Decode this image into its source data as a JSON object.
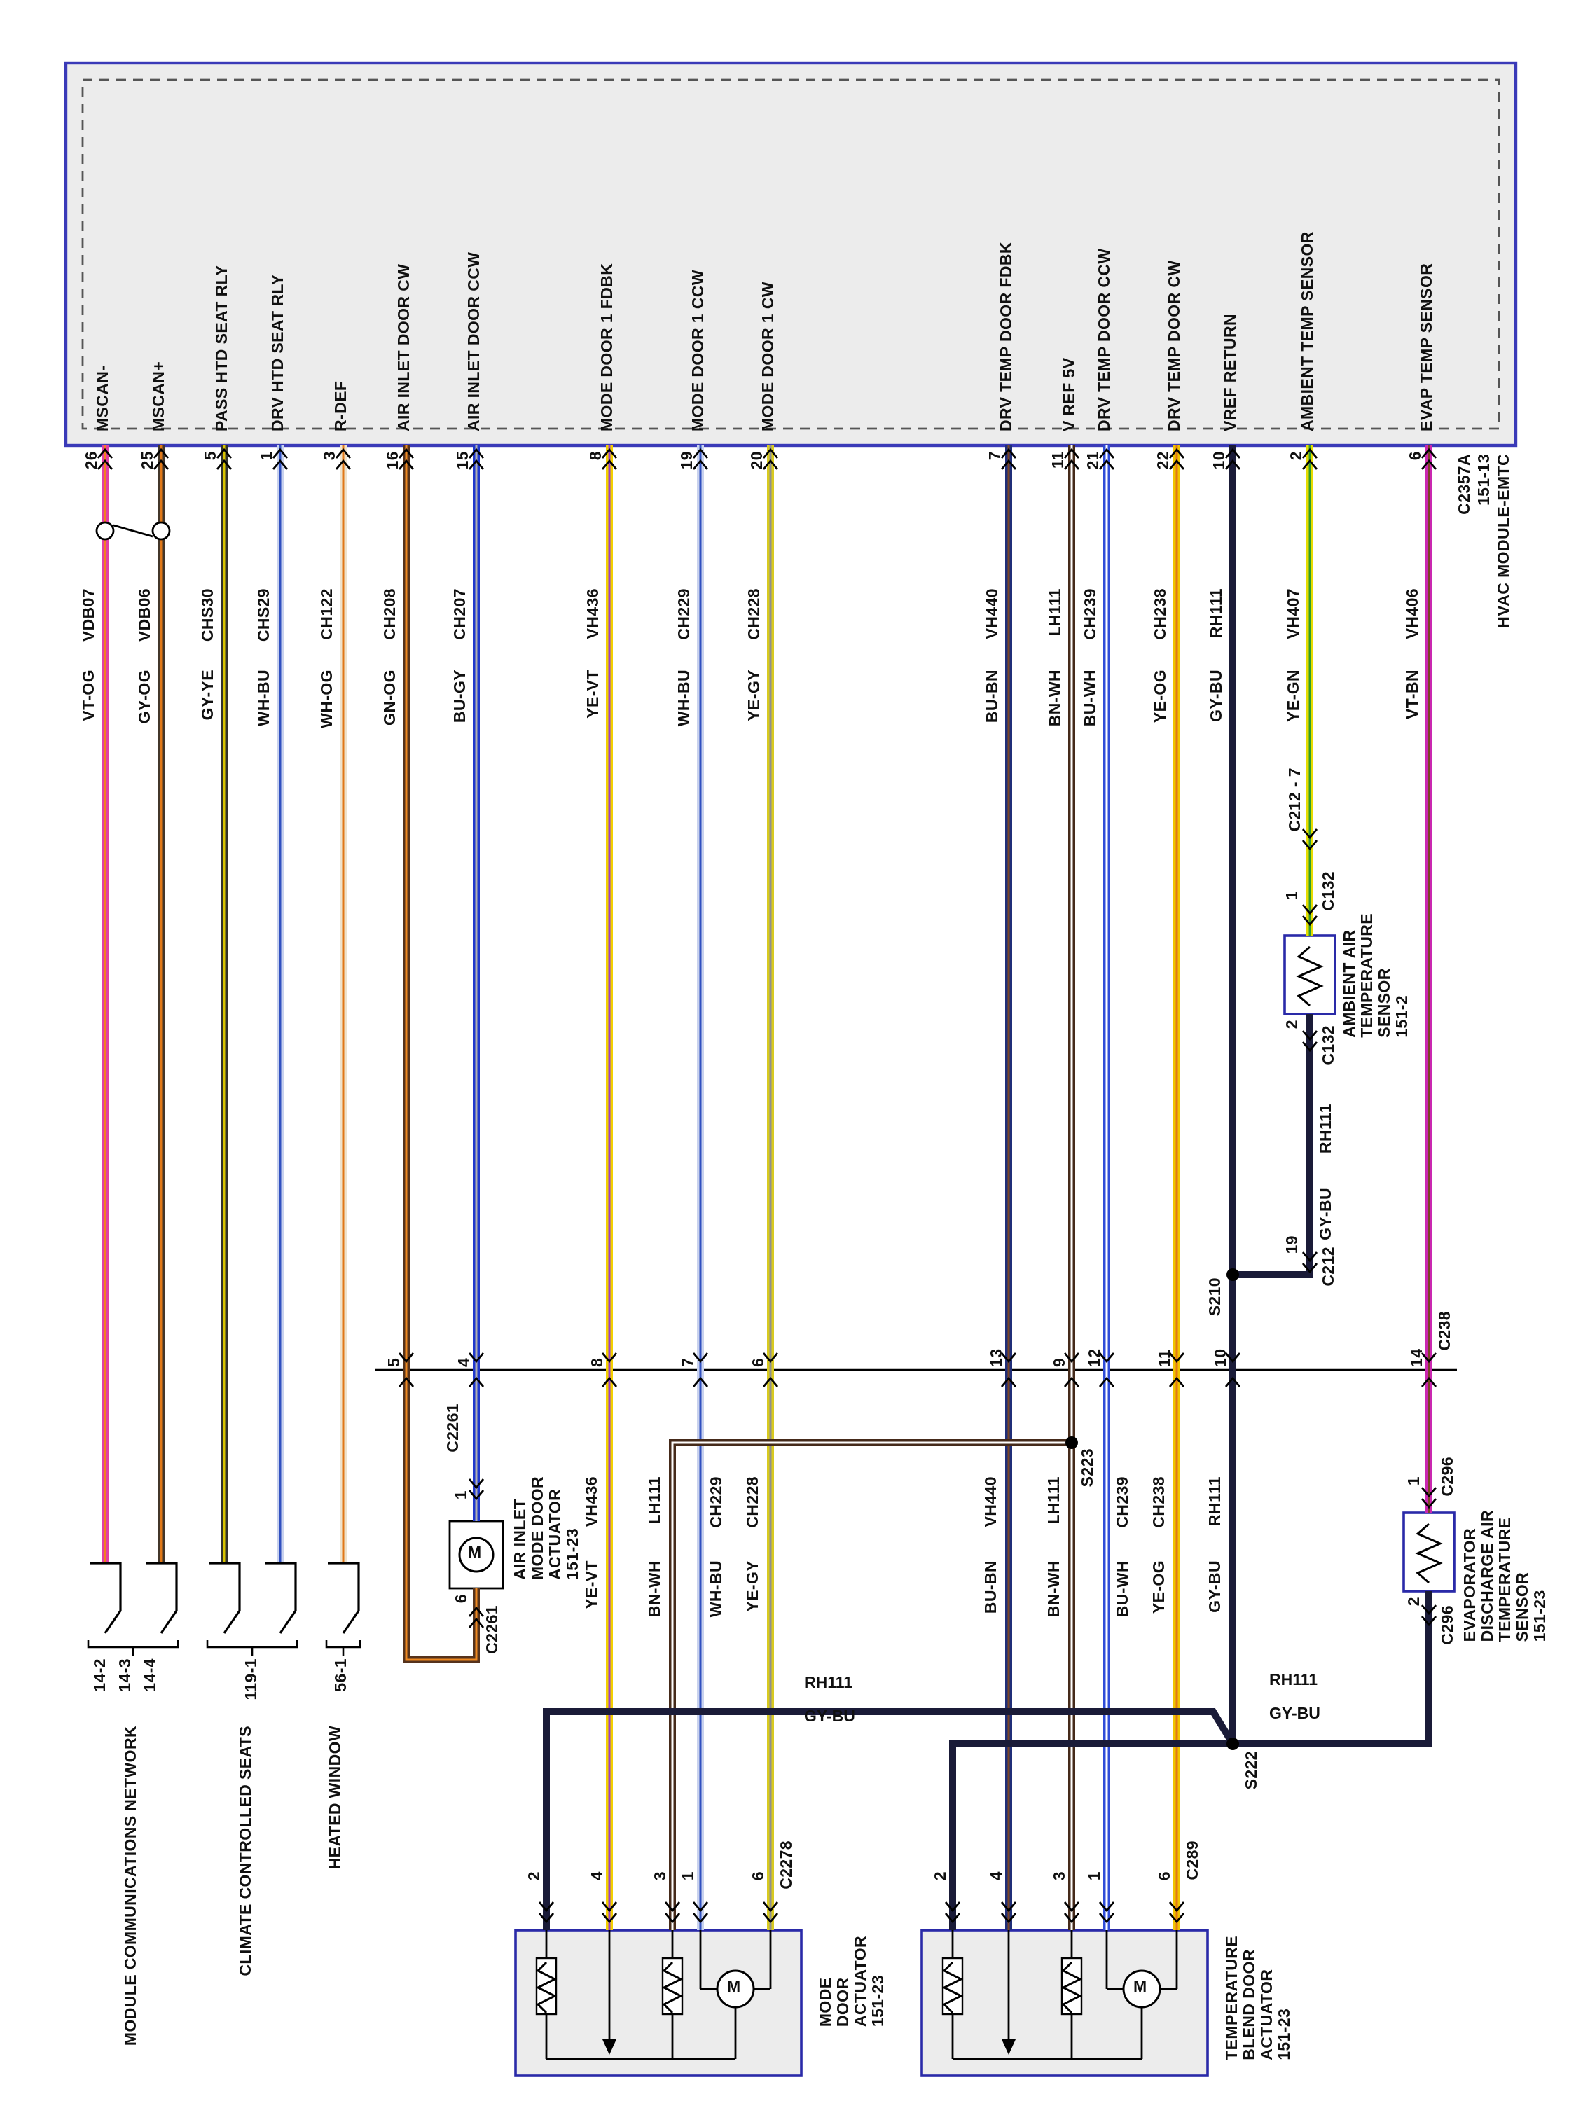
{
  "module": {
    "name": "HVAC MODULE-EMTC",
    "page": "151-13",
    "connector": "C2357A"
  },
  "wires": [
    {
      "pin": "26",
      "label": "MSCAN-",
      "circuit": "VDB07",
      "code": "VT-OG",
      "hex": "#e23fa4",
      "stripe": "#f08020"
    },
    {
      "pin": "25",
      "label": "MSCAN+",
      "circuit": "VDB06",
      "code": "GY-OG",
      "hex": "#42362a",
      "stripe": "#e07818"
    },
    {
      "pin": "5",
      "label": "PASS HTD SEAT RLY",
      "circuit": "CHS30",
      "code": "GY-YE",
      "hex": "#33332b",
      "stripe": "#d8c400"
    },
    {
      "pin": "1",
      "label": "DRV HTD SEAT RLY",
      "circuit": "CHS29",
      "code": "WH-BU",
      "hex": "#c9d2ee",
      "stripe": "#3050c0"
    },
    {
      "pin": "3",
      "label": "R-DEF",
      "circuit": "CH122",
      "code": "WH-OG",
      "hex": "#efe3cc",
      "stripe": "#e07818"
    },
    {
      "pin": "16",
      "label": "AIR INLET DOOR CW",
      "circuit": "CH208",
      "code": "GN-OG",
      "hex": "#56331c",
      "stripe": "#ee8820"
    },
    {
      "pin": "15",
      "label": "AIR INLET DOOR CCW",
      "circuit": "CH207",
      "code": "BU-GY",
      "hex": "#2038cc",
      "stripe": "#b0b0b0"
    },
    {
      "pin": "8",
      "label": "MODE DOOR 1 FDBK",
      "circuit": "VH436",
      "code": "YE-VT",
      "hex": "#f2d000",
      "stripe": "#9a40cc"
    },
    {
      "pin": "19",
      "label": "MODE DOOR 1 CCW",
      "circuit": "CH229",
      "code": "WH-BU",
      "hex": "#c9d2ee",
      "stripe": "#3050c0"
    },
    {
      "pin": "20",
      "label": "MODE DOOR 1 CW",
      "circuit": "CH228",
      "code": "YE-GY",
      "hex": "#d8ca20",
      "stripe": "#909090"
    },
    {
      "pin": "7",
      "label": "DRV TEMP DOOR FDBK",
      "circuit": "VH440",
      "code": "BU-BN",
      "hex": "#202e78",
      "stripe": "#7a4526"
    },
    {
      "pin": "11",
      "label": "V REF 5V",
      "circuit": "LH111",
      "code": "BN-WH",
      "hex": "#452a1a",
      "stripe": "#ffffff"
    },
    {
      "pin": "21",
      "label": "DRV TEMP DOOR CCW",
      "circuit": "CH239",
      "code": "BU-WH",
      "hex": "#2f4cd8",
      "stripe": "#ffffff"
    },
    {
      "pin": "22",
      "label": "DRV TEMP DOOR CW",
      "circuit": "CH238",
      "code": "YE-OG",
      "hex": "#f0c400",
      "stripe": "#e07818"
    },
    {
      "pin": "10",
      "label": "VREF RETURN",
      "circuit": "RH111",
      "code": "GY-BU",
      "hex": "#1a1b38",
      "stripe": null
    },
    {
      "pin": "2",
      "label": "AMBIENT TEMP SENSOR",
      "circuit": "VH407",
      "code": "YE-GN",
      "hex": "#e6dc00",
      "stripe": "#2f9a2f"
    },
    {
      "pin": "6",
      "label": "EVAP TEMP SENSOR",
      "circuit": "VH406",
      "code": "VT-BN",
      "hex": "#ca28b0",
      "stripe": "#7a4526"
    }
  ],
  "rh111": {
    "circuit": "RH111",
    "code": "GY-BU"
  },
  "c238": {
    "label": "C238",
    "pins": [
      "5",
      "4",
      "8",
      "7",
      "6",
      "13",
      "9",
      "12",
      "11",
      "10",
      "14"
    ]
  },
  "splices": {
    "s210": "S210",
    "s222": "S222",
    "s223": "S223"
  },
  "ambient_sensor": {
    "lines": "AMBIENT AIR\nTEMPERATURE\nSENSOR\n151-2",
    "connector": "C132",
    "inline_connector": "C212 - 7",
    "pin1": "1",
    "pin2": "2",
    "return_pin": "19",
    "return_connector": "C212"
  },
  "evap_sensor": {
    "lines": "EVAPORATOR\nDISCHARGE AIR\nTEMPERATURE\nSENSOR\n151-23",
    "connector": "C296",
    "pin1": "1",
    "pin2": "2"
  },
  "air_inlet_actuator": {
    "lines": "AIR INLET\nMODE DOOR\nACTUATOR\n151-23",
    "connector": "C2261",
    "pin_in": "1",
    "pin_out": "6",
    "motor": "M"
  },
  "mode_actuator": {
    "lines": "MODE\nDOOR\nACTUATOR\n151-23",
    "connector": "C2278",
    "pins": [
      "2",
      "4",
      "3",
      "1",
      "6"
    ],
    "motor": "M"
  },
  "temp_actuator": {
    "lines": "TEMPERATURE\nBLEND DOOR\nACTUATOR\n151-23",
    "connector": "C289",
    "pins": [
      "2",
      "4",
      "3",
      "1",
      "6"
    ],
    "motor": "M"
  },
  "offpage": {
    "network": {
      "refs": [
        "14-2",
        "14-3",
        "14-4"
      ],
      "caption": "MODULE COMMUNICATIONS NETWORK"
    },
    "seats": {
      "ref": "119-1",
      "caption": "CLIMATE CONTROLLED SEATS"
    },
    "window": {
      "ref": "56-1",
      "caption": "HEATED WINDOW"
    }
  },
  "palette": {
    "page_bg": "#ffffff",
    "module_fill": "#ececec",
    "module_border": "#3a3ab8",
    "box_border": "#2a2aa8",
    "box_fill": "#ececec",
    "outline": "#000000",
    "splice": "#000000"
  }
}
